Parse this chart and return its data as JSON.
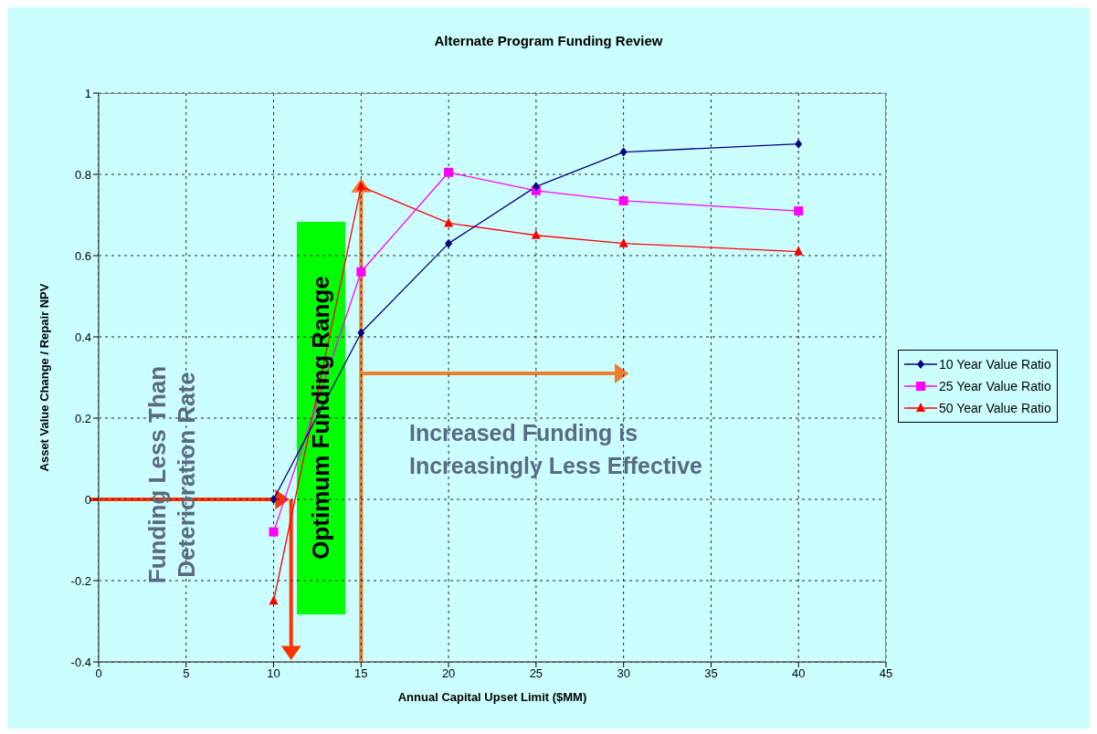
{
  "chart_data": {
    "type": "line",
    "title": "Alternate Program Funding Review",
    "xlabel": "Annual Capital Upset Limit ($MM)",
    "ylabel": "Asset Value Change / Repair NPV",
    "x": [
      10,
      15,
      20,
      25,
      30,
      40
    ],
    "series": [
      {
        "name": "10 Year Value Ratio",
        "color": "#000080",
        "marker": "diamond",
        "values": [
          0,
          0.41,
          0.63,
          0.77,
          0.855,
          0.875
        ]
      },
      {
        "name": "25 Year Value Ratio",
        "color": "#ff00ff",
        "marker": "square",
        "values": [
          -0.08,
          0.56,
          0.805,
          0.76,
          0.735,
          0.71
        ]
      },
      {
        "name": "50 Year Value Ratio",
        "color": "#ff0000",
        "marker": "triangle",
        "values": [
          -0.25,
          0.77,
          0.68,
          0.65,
          0.63,
          0.61
        ]
      }
    ],
    "xlim": [
      0,
      45
    ],
    "xticks": [
      0,
      5,
      10,
      15,
      20,
      25,
      30,
      35,
      40,
      45
    ],
    "ylim": [
      -0.4,
      1
    ],
    "yticks": [
      -0.4,
      -0.2,
      0,
      0.2,
      0.4,
      0.6,
      0.8,
      1
    ],
    "grid": true,
    "legend": "right",
    "line_style": "solid",
    "annotations": [
      "Optimum Funding Range",
      "Funding Less Than Deterioration Rate",
      "Increased Funding is Increasingly Less Effective"
    ]
  }
}
